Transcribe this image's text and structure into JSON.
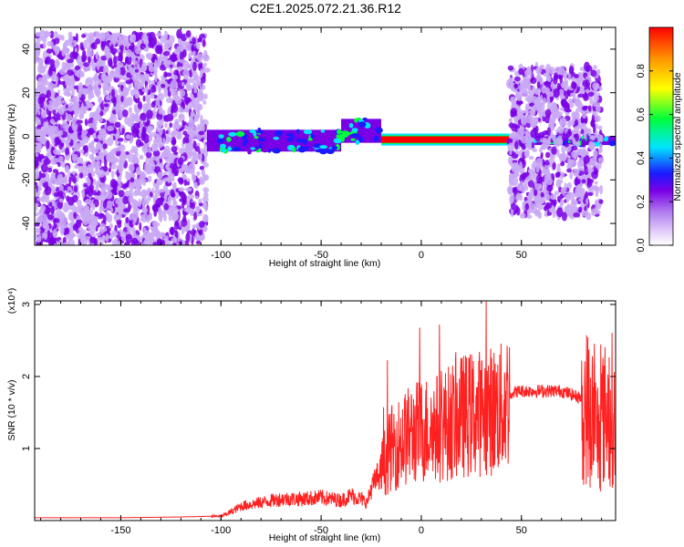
{
  "title": "C2E1.2025.072.21.36.R12",
  "chart_data": [
    {
      "type": "heatmap",
      "xlabel": "Height of straight line (km)",
      "ylabel": "Frequency (Hz)",
      "xlim": [
        -193,
        97
      ],
      "ylim": [
        -50,
        50
      ],
      "x_ticks": [
        -150,
        -100,
        -50,
        0,
        50
      ],
      "x_tick_labels": [
        "-150",
        "-100",
        "-50",
        "0",
        "50"
      ],
      "y_ticks": [
        -40,
        -20,
        0,
        20,
        40
      ],
      "y_tick_labels": [
        "-40",
        "-20",
        "0",
        "20",
        "40"
      ],
      "colorbar": {
        "label": "Normalized spectral amplitude",
        "range": [
          0,
          1
        ],
        "ticks": [
          0.0,
          0.2,
          0.4,
          0.6,
          0.8
        ],
        "tick_labels": [
          "0.0",
          "0.2",
          "0.4",
          "0.6",
          "0.8"
        ],
        "colors": [
          "#ffffff",
          "#c9a8f5",
          "#7a00e6",
          "#1a1aff",
          "#00e5ff",
          "#00ff3a",
          "#ffff00",
          "#ff9a00",
          "#ff0000"
        ]
      },
      "regions": [
        {
          "x": [
            -193,
            -107
          ],
          "freq": [
            -50,
            47
          ],
          "intensity": 0.15,
          "kind": "noise"
        },
        {
          "x": [
            -107,
            -40
          ],
          "freq": [
            -7,
            3
          ],
          "intensity": 0.4,
          "kind": "band"
        },
        {
          "x": [
            -40,
            -20
          ],
          "freq": [
            -3,
            8
          ],
          "intensity": 0.45,
          "kind": "band"
        },
        {
          "x": [
            -20,
            44
          ],
          "freq": [
            -3,
            0
          ],
          "intensity": 0.95,
          "kind": "line"
        },
        {
          "x": [
            44,
            97
          ],
          "freq": [
            -4,
            0
          ],
          "intensity": 0.4,
          "kind": "band"
        },
        {
          "x": [
            44,
            90
          ],
          "freq": [
            -37,
            32
          ],
          "intensity": 0.15,
          "kind": "noise"
        }
      ]
    },
    {
      "type": "line",
      "xlabel": "Height of straight line (km)",
      "ylabel": "SNR (10 * v/v)",
      "y_multiplier": "(x10⁴)",
      "xlim": [
        -193,
        97
      ],
      "ylim": [
        0,
        3.05
      ],
      "x_ticks": [
        -150,
        -100,
        -50,
        0,
        50
      ],
      "x_tick_labels": [
        "-150",
        "-100",
        "-50",
        "0",
        "50"
      ],
      "y_ticks": [
        1,
        2,
        3
      ],
      "y_tick_labels": [
        "1",
        "2",
        "3"
      ],
      "series": [
        {
          "color": "#ff2020",
          "x": [
            -193,
            -150,
            -120,
            -105,
            -100,
            -95,
            -90,
            -80,
            -70,
            -60,
            -50,
            -45,
            -40,
            -35,
            -30,
            -27,
            -25,
            -22,
            -20,
            -15,
            -10,
            -5,
            0,
            10,
            20,
            30,
            40,
            45,
            50,
            60,
            70,
            80,
            85,
            88,
            90,
            95,
            97
          ],
          "y": [
            0.04,
            0.04,
            0.05,
            0.06,
            0.06,
            0.12,
            0.2,
            0.25,
            0.3,
            0.3,
            0.32,
            0.3,
            0.28,
            0.35,
            0.3,
            0.25,
            0.45,
            0.6,
            0.7,
            1.0,
            1.1,
            1.2,
            1.25,
            1.3,
            1.45,
            1.5,
            1.55,
            1.78,
            1.8,
            1.8,
            1.8,
            1.7,
            1.5,
            1.2,
            1.4,
            1.6,
            1.2
          ]
        }
      ]
    }
  ]
}
